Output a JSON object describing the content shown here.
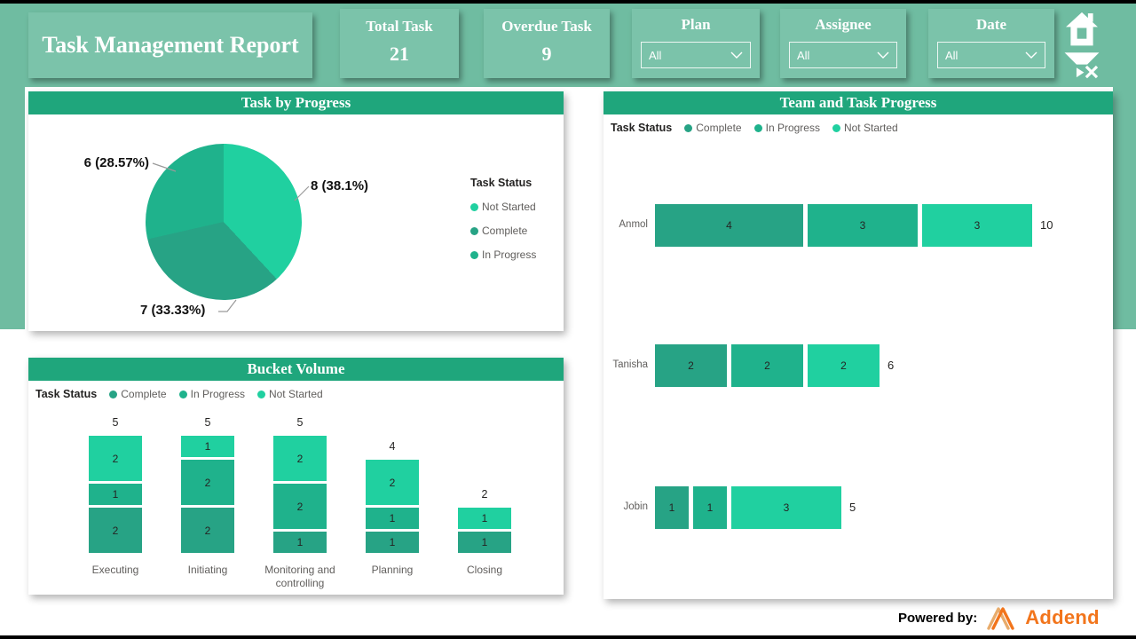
{
  "colors": {
    "complete": "#27A385",
    "in_progress": "#1FB28C",
    "not_started": "#20D0A0",
    "band_green": "#6FBCA1",
    "card_green": "#7BC3AA",
    "panel_header_green": "#1FA67C",
    "brand_orange": "#F2751C"
  },
  "status_labels": {
    "complete": "Complete",
    "in_progress": "In Progress",
    "not_started": "Not Started"
  },
  "header": {
    "title": "Task Management Report",
    "kpis": [
      {
        "label": "Total Task",
        "value": "21"
      },
      {
        "label": "Overdue Task",
        "value": "9"
      }
    ],
    "filters": [
      {
        "label": "Plan",
        "value": "All"
      },
      {
        "label": "Assignee",
        "value": "All"
      },
      {
        "label": "Date",
        "value": "All"
      }
    ],
    "icons": {
      "home": "house glyph",
      "clear_filter": "funnel with x glyph"
    }
  },
  "footer": {
    "powered_by": "Powered by:",
    "brand": "Addend"
  },
  "chart_data": [
    {
      "id": "task_by_progress",
      "type": "pie",
      "title": "Task by Progress",
      "legend_title": "Task Status",
      "legend_position": "right",
      "legend_order": [
        "not_started",
        "complete",
        "in_progress"
      ],
      "total": 21,
      "slices": [
        {
          "label": "Not Started",
          "status": "not_started",
          "value": 8,
          "percent": "38.1%",
          "callout": "8 (38.1%)"
        },
        {
          "label": "Complete",
          "status": "complete",
          "value": 7,
          "percent": "33.33%",
          "callout": "7 (33.33%)"
        },
        {
          "label": "In Progress",
          "status": "in_progress",
          "value": 6,
          "percent": "28.57%",
          "callout": "6 (28.57%)"
        }
      ]
    },
    {
      "id": "bucket_volume",
      "type": "bar",
      "stacked": true,
      "title": "Bucket Volume",
      "legend_title": "Task Status",
      "legend_position": "top",
      "legend_order": [
        "complete",
        "in_progress",
        "not_started"
      ],
      "categories": [
        "Executing",
        "Initiating",
        "Monitoring and controlling",
        "Planning",
        "Closing"
      ],
      "series": [
        {
          "name": "Complete",
          "status": "complete",
          "values": [
            2,
            2,
            1,
            1,
            1
          ]
        },
        {
          "name": "In Progress",
          "status": "in_progress",
          "values": [
            1,
            2,
            2,
            1,
            0
          ]
        },
        {
          "name": "Not Started",
          "status": "not_started",
          "values": [
            2,
            1,
            2,
            2,
            1
          ]
        }
      ],
      "totals": [
        5,
        5,
        5,
        4,
        2
      ],
      "ylim": [
        0,
        5
      ],
      "grid": false
    },
    {
      "id": "team_and_task_progress",
      "type": "bar",
      "stacked": true,
      "orientation": "horizontal",
      "title": "Team and Task Progress",
      "legend_title": "Task Status",
      "legend_position": "top",
      "legend_order": [
        "complete",
        "in_progress",
        "not_started"
      ],
      "categories": [
        "Anmol",
        "Tanisha",
        "Jobin"
      ],
      "series": [
        {
          "name": "Complete",
          "status": "complete",
          "values": [
            4,
            2,
            1
          ]
        },
        {
          "name": "In Progress",
          "status": "in_progress",
          "values": [
            3,
            2,
            1
          ]
        },
        {
          "name": "Not Started",
          "status": "not_started",
          "values": [
            3,
            2,
            3
          ]
        }
      ],
      "totals": [
        10,
        6,
        5
      ],
      "xlim": [
        0,
        10
      ],
      "grid": false
    }
  ]
}
